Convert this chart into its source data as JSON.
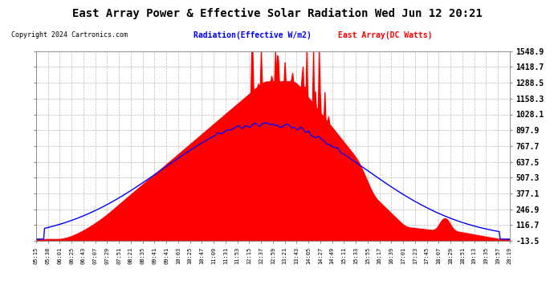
{
  "title": "East Array Power & Effective Solar Radiation Wed Jun 12 20:21",
  "copyright": "Copyright 2024 Cartronics.com",
  "legend_radiation": "Radiation(Effective W/m2)",
  "legend_east": "East Array(DC Watts)",
  "bg_color": "#ffffff",
  "plot_bg_color": "#ffffff",
  "grid_color": "#aaaaaa",
  "radiation_color": "#0000ff",
  "east_color": "#ff0000",
  "title_color": "#000000",
  "copyright_color": "#000000",
  "legend_radiation_color": "#0000ff",
  "legend_east_color": "#ff0000",
  "ymin": -13.5,
  "ymax": 1548.9,
  "yticks": [
    -13.5,
    116.7,
    246.9,
    377.1,
    507.3,
    637.5,
    767.7,
    897.9,
    1028.1,
    1158.3,
    1288.5,
    1418.7,
    1548.9
  ],
  "xtick_labels": [
    "05:15",
    "05:38",
    "06:01",
    "06:25",
    "06:43",
    "07:07",
    "07:29",
    "07:51",
    "08:21",
    "08:35",
    "09:41",
    "09:41",
    "10:03",
    "10:25",
    "10:47",
    "11:09",
    "11:31",
    "11:53",
    "12:15",
    "12:37",
    "12:59",
    "13:21",
    "13:43",
    "14:05",
    "14:27",
    "14:49",
    "15:11",
    "15:33",
    "15:55",
    "16:17",
    "16:39",
    "17:01",
    "17:23",
    "17:45",
    "18:07",
    "18:29",
    "18:51",
    "19:13",
    "19:35",
    "19:57",
    "20:19"
  ]
}
